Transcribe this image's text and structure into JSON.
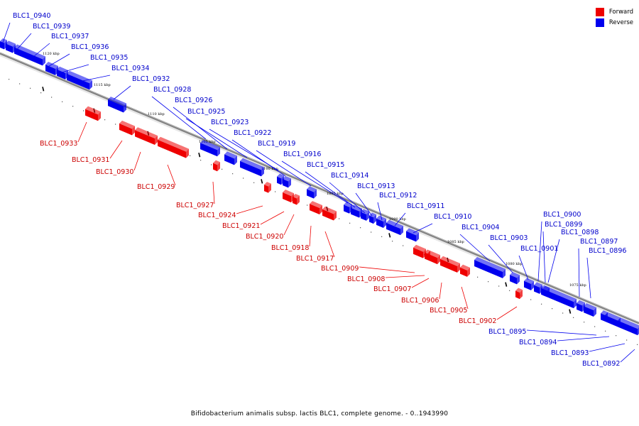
{
  "caption": "Bifidobacterium animalis subsp. lactis BLC1, complete genome. - 0..1943990",
  "legend": [
    {
      "label": "Forward",
      "color": "#ee0000"
    },
    {
      "label": "Reverse",
      "color": "#0000ee"
    }
  ],
  "colors": {
    "forward": "#ee0000",
    "reverse": "#0000ee",
    "backbone": "#808080"
  },
  "scale_ticks": [
    {
      "label": "1120 kbp",
      "kb": 1120
    },
    {
      "label": "1115 kbp",
      "kb": 1115
    },
    {
      "label": "1110 kbp",
      "kb": 1110
    },
    {
      "label": "1105 kbp",
      "kb": 1105
    },
    {
      "label": "1100 kbp",
      "kb": 1100
    },
    {
      "label": "1095 kbp",
      "kb": 1095
    },
    {
      "label": "1090 kbp",
      "kb": 1090
    },
    {
      "label": "1085 kbp",
      "kb": 1085
    },
    {
      "label": "1080 kbp",
      "kb": 1080
    },
    {
      "label": "1075 kbp",
      "kb": 1075
    }
  ],
  "genes": [
    {
      "name": "BLC1_0940",
      "strand": "reverse"
    },
    {
      "name": "BLC1_0939",
      "strand": "reverse"
    },
    {
      "name": "BLC1_0937",
      "strand": "reverse"
    },
    {
      "name": "BLC1_0936",
      "strand": "reverse"
    },
    {
      "name": "BLC1_0935",
      "strand": "reverse"
    },
    {
      "name": "BLC1_0934",
      "strand": "reverse"
    },
    {
      "name": "BLC1_0932",
      "strand": "reverse"
    },
    {
      "name": "BLC1_0928",
      "strand": "reverse"
    },
    {
      "name": "BLC1_0926",
      "strand": "reverse"
    },
    {
      "name": "BLC1_0925",
      "strand": "reverse"
    },
    {
      "name": "BLC1_0923",
      "strand": "reverse"
    },
    {
      "name": "BLC1_0922",
      "strand": "reverse"
    },
    {
      "name": "BLC1_0919",
      "strand": "reverse"
    },
    {
      "name": "BLC1_0916",
      "strand": "reverse"
    },
    {
      "name": "BLC1_0915",
      "strand": "reverse"
    },
    {
      "name": "BLC1_0914",
      "strand": "reverse"
    },
    {
      "name": "BLC1_0913",
      "strand": "reverse"
    },
    {
      "name": "BLC1_0912",
      "strand": "reverse"
    },
    {
      "name": "BLC1_0911",
      "strand": "reverse"
    },
    {
      "name": "BLC1_0910",
      "strand": "reverse"
    },
    {
      "name": "BLC1_0904",
      "strand": "reverse"
    },
    {
      "name": "BLC1_0903",
      "strand": "reverse"
    },
    {
      "name": "BLC1_0901",
      "strand": "reverse"
    },
    {
      "name": "BLC1_0900",
      "strand": "reverse"
    },
    {
      "name": "BLC1_0899",
      "strand": "reverse"
    },
    {
      "name": "BLC1_0898",
      "strand": "reverse"
    },
    {
      "name": "BLC1_0897",
      "strand": "reverse"
    },
    {
      "name": "BLC1_0896",
      "strand": "reverse"
    },
    {
      "name": "BLC1_0895",
      "strand": "reverse"
    },
    {
      "name": "BLC1_0894",
      "strand": "reverse"
    },
    {
      "name": "BLC1_0893",
      "strand": "reverse"
    },
    {
      "name": "BLC1_0892",
      "strand": "reverse"
    },
    {
      "name": "BLC1_0933",
      "strand": "forward"
    },
    {
      "name": "BLC1_0931",
      "strand": "forward"
    },
    {
      "name": "BLC1_0930",
      "strand": "forward"
    },
    {
      "name": "BLC1_0929",
      "strand": "forward"
    },
    {
      "name": "BLC1_0927",
      "strand": "forward"
    },
    {
      "name": "BLC1_0924",
      "strand": "forward"
    },
    {
      "name": "BLC1_0921",
      "strand": "forward"
    },
    {
      "name": "BLC1_0920",
      "strand": "forward"
    },
    {
      "name": "BLC1_0918",
      "strand": "forward"
    },
    {
      "name": "BLC1_0917",
      "strand": "forward"
    },
    {
      "name": "BLC1_0909",
      "strand": "forward"
    },
    {
      "name": "BLC1_0908",
      "strand": "forward"
    },
    {
      "name": "BLC1_0907",
      "strand": "forward"
    },
    {
      "name": "BLC1_0906",
      "strand": "forward"
    },
    {
      "name": "BLC1_0905",
      "strand": "forward"
    },
    {
      "name": "BLC1_0902",
      "strand": "forward"
    }
  ]
}
